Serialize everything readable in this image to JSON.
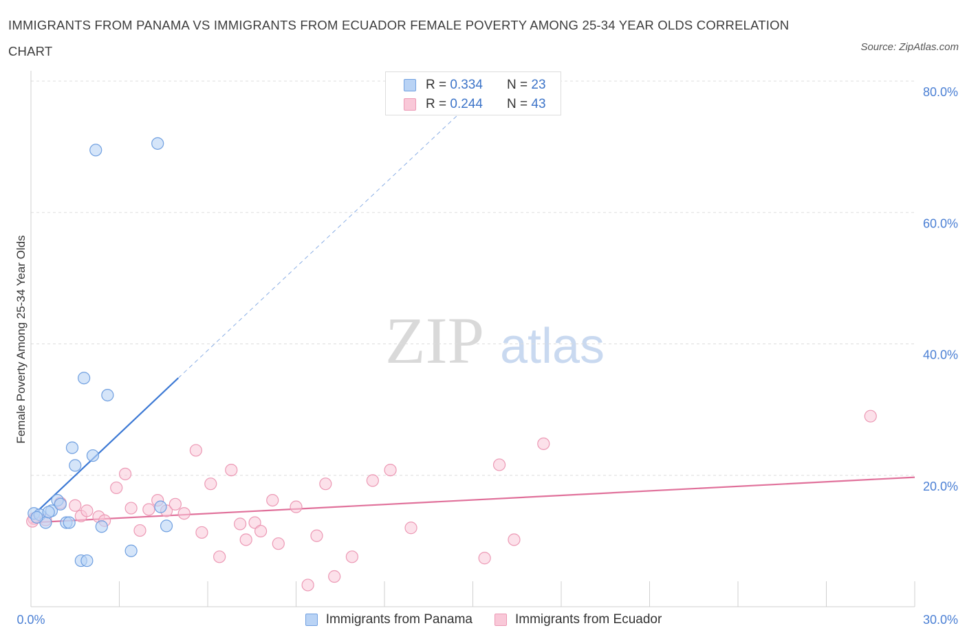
{
  "title": "IMMIGRANTS FROM PANAMA VS IMMIGRANTS FROM ECUADOR FEMALE POVERTY AMONG 25-34 YEAR OLDS CORRELATION CHART",
  "source": "Source: ZipAtlas.com",
  "watermark": {
    "zip": "ZIP",
    "atlas": "atlas"
  },
  "colors": {
    "panama": "#6f9fe0",
    "panama_fill": "#b9d3f5",
    "panama_line": "#3b78d4",
    "ecuador": "#ec98b4",
    "ecuador_fill": "#f9c8d8",
    "ecuador_line": "#e0709a",
    "tick_label": "#4a7fd4",
    "grid": "#dddddd"
  },
  "legend_top": [
    {
      "r_label": "R = ",
      "r_value": "0.334",
      "n_label": "N = ",
      "n_value": "23"
    },
    {
      "r_label": "R = ",
      "r_value": "0.244",
      "n_label": "N = ",
      "n_value": "43"
    }
  ],
  "chart_data": {
    "type": "scatter",
    "title": "IMMIGRANTS FROM PANAMA VS IMMIGRANTS FROM ECUADOR FEMALE POVERTY AMONG 25-34 YEAR OLDS CORRELATION CHART",
    "xlabel": "",
    "ylabel": "Female Poverty Among 25-34 Year Olds",
    "xlim": [
      0,
      30
    ],
    "ylim": [
      0,
      80
    ],
    "x_tick_labels": [
      "0.0%",
      "30.0%"
    ],
    "y_ticks": [
      20,
      40,
      60,
      80
    ],
    "y_tick_labels": [
      "20.0%",
      "40.0%",
      "60.0%",
      "80.0%"
    ],
    "grid": true,
    "legend_position": "bottom",
    "series": [
      {
        "name": "Immigrants from Panama",
        "r": 0.334,
        "n": 23,
        "points": [
          [
            0.1,
            14.2
          ],
          [
            0.3,
            14.0
          ],
          [
            0.5,
            12.8
          ],
          [
            0.7,
            14.6
          ],
          [
            0.9,
            16.2
          ],
          [
            1.0,
            15.6
          ],
          [
            1.2,
            12.8
          ],
          [
            1.3,
            12.8
          ],
          [
            1.4,
            24.2
          ],
          [
            1.5,
            21.5
          ],
          [
            1.7,
            7.0
          ],
          [
            1.9,
            7.0
          ],
          [
            1.8,
            34.8
          ],
          [
            2.1,
            23.0
          ],
          [
            2.4,
            12.2
          ],
          [
            2.6,
            32.2
          ],
          [
            2.2,
            69.5
          ],
          [
            3.4,
            8.5
          ],
          [
            4.3,
            70.5
          ],
          [
            4.4,
            15.2
          ],
          [
            4.6,
            12.3
          ],
          [
            0.6,
            14.4
          ],
          [
            0.2,
            13.6
          ]
        ],
        "trend": {
          "x0": 0.0,
          "y0": 13.6,
          "x1": 5.0,
          "y1": 34.8,
          "dashed_to_x": 15.0,
          "dashed_to_y": 77.0
        }
      },
      {
        "name": "Immigrants from Ecuador",
        "r": 0.244,
        "n": 43,
        "points": [
          [
            0.1,
            13.4
          ],
          [
            0.5,
            13.2
          ],
          [
            1.0,
            15.8
          ],
          [
            1.5,
            15.4
          ],
          [
            1.7,
            13.8
          ],
          [
            1.9,
            14.6
          ],
          [
            2.3,
            13.7
          ],
          [
            2.5,
            13.1
          ],
          [
            2.9,
            18.1
          ],
          [
            3.2,
            20.2
          ],
          [
            3.4,
            15.0
          ],
          [
            3.7,
            11.6
          ],
          [
            4.0,
            14.8
          ],
          [
            4.3,
            16.2
          ],
          [
            4.6,
            14.6
          ],
          [
            4.9,
            15.6
          ],
          [
            5.2,
            14.2
          ],
          [
            5.6,
            23.8
          ],
          [
            5.8,
            11.3
          ],
          [
            6.1,
            18.7
          ],
          [
            6.4,
            7.6
          ],
          [
            6.8,
            20.8
          ],
          [
            7.1,
            12.6
          ],
          [
            7.3,
            10.2
          ],
          [
            7.6,
            12.8
          ],
          [
            7.8,
            11.5
          ],
          [
            8.2,
            16.2
          ],
          [
            8.4,
            9.6
          ],
          [
            9.0,
            15.2
          ],
          [
            9.4,
            3.3
          ],
          [
            9.7,
            10.8
          ],
          [
            10.0,
            18.7
          ],
          [
            10.3,
            4.6
          ],
          [
            10.9,
            7.6
          ],
          [
            11.6,
            19.2
          ],
          [
            12.2,
            20.8
          ],
          [
            12.9,
            12.0
          ],
          [
            15.4,
            7.4
          ],
          [
            15.9,
            21.6
          ],
          [
            16.4,
            10.2
          ],
          [
            17.4,
            24.8
          ],
          [
            28.5,
            29.0
          ],
          [
            0.05,
            13.0
          ]
        ],
        "trend": {
          "x0": 0.0,
          "y0": 12.8,
          "x1": 30.0,
          "y1": 19.7
        }
      }
    ]
  }
}
